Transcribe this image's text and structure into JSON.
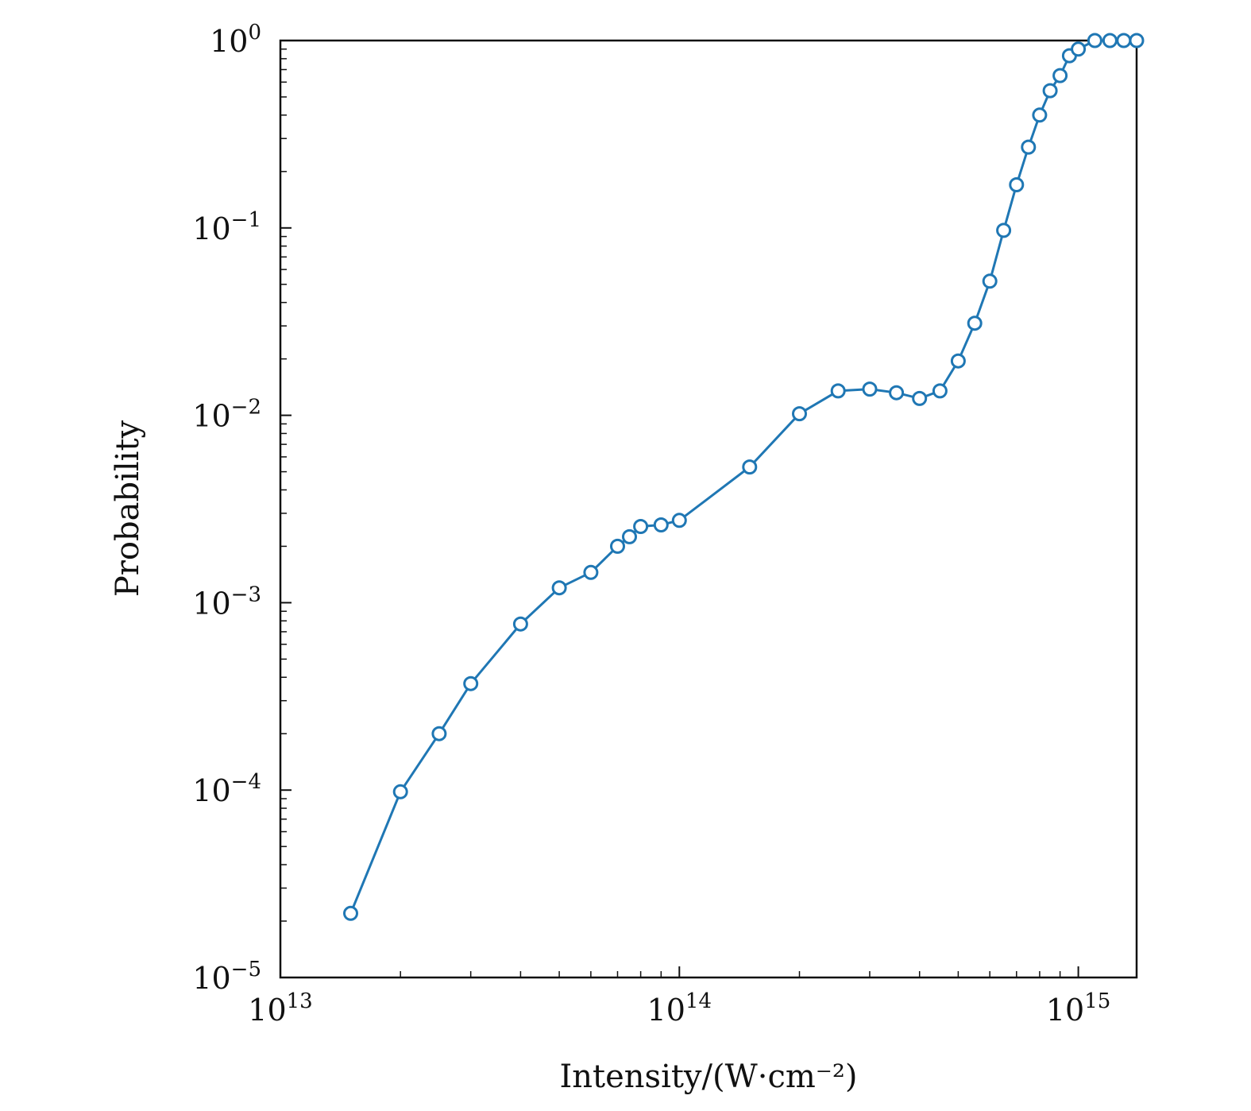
{
  "chart_data": {
    "type": "line",
    "xlabel": "Intensity/(W·cm⁻²)",
    "ylabel": "Probability",
    "xscale": "log",
    "yscale": "log",
    "xlim": [
      10000000000000.0,
      1400000000000000.0
    ],
    "ylim": [
      1e-05,
      1
    ],
    "x_ticks": [
      {
        "base": "10",
        "exp": "13"
      },
      {
        "base": "10",
        "exp": "14"
      },
      {
        "base": "10",
        "exp": "15"
      }
    ],
    "y_ticks": [
      {
        "base": "10",
        "exp": "0"
      },
      {
        "base": "10",
        "exp": "−1"
      },
      {
        "base": "10",
        "exp": "−2"
      },
      {
        "base": "10",
        "exp": "−3"
      },
      {
        "base": "10",
        "exp": "−4"
      },
      {
        "base": "10",
        "exp": "−5"
      }
    ],
    "grid": false,
    "marker": "open-circle",
    "color": "#1f77b4",
    "series": [
      {
        "x": [
          15000000000000.0,
          20000000000000.0,
          25000000000000.0,
          30000000000000.0,
          40000000000000.0,
          50000000000000.0,
          60000000000000.0,
          70000000000000.0,
          75000000000000.0,
          80000000000000.0,
          90000000000000.0,
          100000000000000.0,
          150000000000000.0,
          200000000000000.0,
          250000000000000.0,
          300000000000000.0,
          350000000000000.0,
          400000000000000.0,
          450000000000000.0,
          500000000000000.0,
          550000000000000.0,
          600000000000000.0,
          650000000000000.0,
          700000000000000.0,
          750000000000000.0,
          800000000000000.0,
          850000000000000.0,
          900000000000000.0,
          950000000000000.0,
          1000000000000000.0,
          1100000000000000.0,
          1200000000000000.0,
          1300000000000000.0,
          1400000000000000.0
        ],
        "y": [
          2.2e-05,
          9.8e-05,
          0.0002,
          0.00037,
          0.00077,
          0.0012,
          0.00145,
          0.002,
          0.00225,
          0.00255,
          0.0026,
          0.00275,
          0.0053,
          0.0102,
          0.0135,
          0.0138,
          0.0132,
          0.0123,
          0.0135,
          0.0195,
          0.031,
          0.052,
          0.097,
          0.17,
          0.27,
          0.4,
          0.54,
          0.65,
          0.83,
          0.9,
          1.0,
          1.0,
          1.0,
          1.0
        ]
      }
    ]
  }
}
